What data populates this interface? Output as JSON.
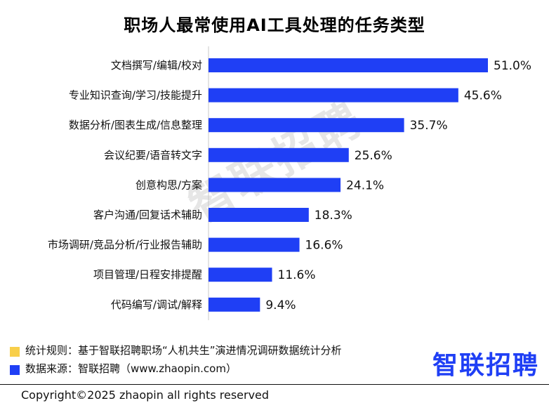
{
  "chart_data": {
    "type": "bar",
    "orientation": "horizontal",
    "title": "职场人最常使用AI工具处理的任务类型",
    "categories": [
      "文档撰写/编辑/校对",
      "专业知识查询/学习/技能提升",
      "数据分析/图表生成/信息整理",
      "会议纪要/语音转文字",
      "创意构思/方案",
      "客户沟通/回复话术辅助",
      "市场调研/竞品分析/行业报告辅助",
      "项目管理/日程安排提醒",
      "代码编写/调试/解释"
    ],
    "values": [
      51.0,
      45.6,
      35.7,
      25.6,
      24.1,
      18.3,
      16.6,
      11.6,
      9.4
    ],
    "value_labels": [
      "51.0%",
      "45.6%",
      "35.7%",
      "25.6%",
      "24.1%",
      "18.3%",
      "16.6%",
      "11.6%",
      "9.4%"
    ],
    "xlim": [
      0,
      51
    ],
    "bar_color": "#1f3ff5",
    "grid": false
  },
  "watermark": "智联招聘",
  "notes": [
    {
      "text": "统计规则：基于智联招聘职场“人机共生”演进情况调研数据统计分析",
      "color": "#f8cf4a"
    },
    {
      "text": "数据来源：智联招聘（www.zhaopin.com）",
      "color": "#1f3ff5"
    }
  ],
  "brand": "智联招聘",
  "copyright": "Copyright©2025 zhaopin all rights reserved"
}
